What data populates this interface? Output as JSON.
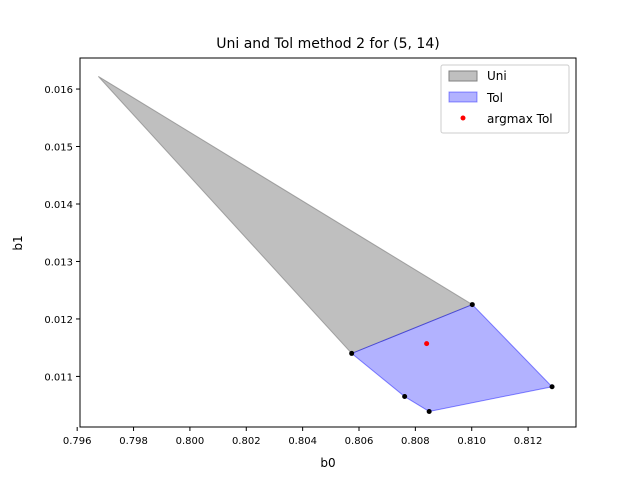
{
  "chart_data": {
    "type": "area",
    "title": "Uni and Tol method 2 for (5, 14)",
    "xlabel": "b0",
    "ylabel": "b1",
    "xlim": [
      0.7961,
      0.8137
    ],
    "ylim": [
      0.01012,
      0.01654
    ],
    "xticks": [
      0.796,
      0.798,
      0.8,
      0.802,
      0.804,
      0.806,
      0.808,
      0.81,
      0.812
    ],
    "xtick_labels": [
      "0.796",
      "0.798",
      "0.800",
      "0.802",
      "0.804",
      "0.806",
      "0.808",
      "0.810",
      "0.812"
    ],
    "yticks": [
      0.011,
      0.012,
      0.013,
      0.014,
      0.015,
      0.016
    ],
    "ytick_labels": [
      "0.011",
      "0.012",
      "0.013",
      "0.014",
      "0.015",
      "0.016"
    ],
    "legend_position": "top-right",
    "series": [
      {
        "name": "Uni",
        "kind": "polygon",
        "color": "#808080",
        "fill_opacity": 0.5,
        "points": [
          [
            0.79675,
            0.01622
          ],
          [
            0.81002,
            0.01225
          ],
          [
            0.80574,
            0.0114
          ]
        ]
      },
      {
        "name": "Tol",
        "kind": "polygon",
        "color": "#0000ff",
        "fill_opacity": 0.3,
        "points": [
          [
            0.80574,
            0.0114
          ],
          [
            0.81002,
            0.01225
          ],
          [
            0.81285,
            0.01082
          ],
          [
            0.80849,
            0.01039
          ],
          [
            0.80762,
            0.01065
          ]
        ]
      },
      {
        "name": "argmax Tol",
        "kind": "scatter",
        "color": "#ff0000",
        "points": [
          [
            0.8084,
            0.01157
          ]
        ]
      }
    ],
    "vertices": {
      "color": "#000000",
      "points": [
        [
          0.80574,
          0.0114
        ],
        [
          0.81002,
          0.01225
        ],
        [
          0.81285,
          0.01082
        ],
        [
          0.80849,
          0.01039
        ],
        [
          0.80762,
          0.01065
        ]
      ]
    }
  }
}
